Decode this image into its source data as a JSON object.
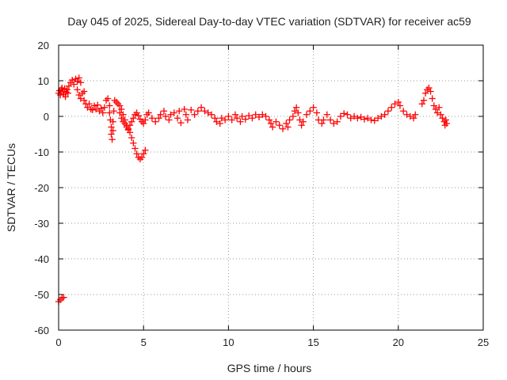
{
  "chart_data": {
    "type": "scatter",
    "title": "Day 045 of 2025, Sidereal Day-to-day VTEC variation (SDTVAR) for receiver ac59",
    "xlabel": "GPS time / hours",
    "ylabel": "SDTVAR / TECUs",
    "xlim": [
      0,
      25
    ],
    "ylim": [
      -60,
      20
    ],
    "xticks": [
      0,
      5,
      10,
      15,
      20,
      25
    ],
    "yticks": [
      -60,
      -50,
      -40,
      -30,
      -20,
      -10,
      0,
      10,
      20
    ],
    "xtick_labels": [
      "0",
      "5",
      "10",
      "15",
      "20",
      "25"
    ],
    "ytick_labels": [
      "-60",
      "-50",
      "-40",
      "-30",
      "-20",
      "-10",
      "0",
      "10",
      "20"
    ],
    "grid": true,
    "marker": "plus",
    "color": "#ff0000",
    "series": [
      {
        "name": "SDTVAR",
        "points": [
          [
            0.0,
            -52.0
          ],
          [
            0.1,
            -51.5
          ],
          [
            0.2,
            -51.0
          ],
          [
            0.3,
            -50.8
          ],
          [
            0.0,
            6.5
          ],
          [
            0.05,
            7.2
          ],
          [
            0.1,
            6.0
          ],
          [
            0.15,
            7.5
          ],
          [
            0.2,
            8.0
          ],
          [
            0.25,
            7.0
          ],
          [
            0.3,
            6.2
          ],
          [
            0.35,
            7.8
          ],
          [
            0.4,
            5.5
          ],
          [
            0.45,
            6.8
          ],
          [
            0.5,
            7.5
          ],
          [
            0.55,
            6.5
          ],
          [
            0.6,
            8.5
          ],
          [
            0.7,
            9.5
          ],
          [
            0.8,
            10.2
          ],
          [
            0.9,
            9.0
          ],
          [
            1.0,
            10.5
          ],
          [
            1.1,
            9.8
          ],
          [
            1.2,
            10.8
          ],
          [
            1.3,
            9.5
          ],
          [
            1.1,
            7.5
          ],
          [
            1.2,
            6.0
          ],
          [
            1.3,
            5.0
          ],
          [
            1.4,
            6.5
          ],
          [
            1.5,
            4.5
          ],
          [
            1.6,
            3.5
          ],
          [
            1.5,
            7.0
          ],
          [
            1.7,
            2.5
          ],
          [
            1.8,
            3.5
          ],
          [
            1.9,
            2.0
          ],
          [
            2.0,
            1.8
          ],
          [
            2.1,
            3.0
          ],
          [
            2.2,
            2.0
          ],
          [
            2.3,
            3.2
          ],
          [
            2.4,
            1.5
          ],
          [
            2.5,
            2.2
          ],
          [
            2.6,
            1.0
          ],
          [
            2.7,
            2.5
          ],
          [
            2.8,
            4.5
          ],
          [
            2.9,
            5.0
          ],
          [
            3.0,
            3.0
          ],
          [
            3.0,
            1.0
          ],
          [
            3.05,
            -1.0
          ],
          [
            3.1,
            -3.0
          ],
          [
            3.1,
            -5.0
          ],
          [
            3.15,
            -6.5
          ],
          [
            3.2,
            -4.0
          ],
          [
            3.2,
            -1.5
          ],
          [
            3.25,
            1.5
          ],
          [
            3.3,
            4.5
          ],
          [
            3.4,
            4.0
          ],
          [
            3.5,
            3.5
          ],
          [
            3.6,
            3.0
          ],
          [
            3.7,
            2.0
          ],
          [
            3.8,
            0.5
          ],
          [
            3.9,
            -1.0
          ],
          [
            4.0,
            -2.5
          ],
          [
            4.1,
            -3.5
          ],
          [
            4.2,
            -4.5
          ],
          [
            4.3,
            -6.0
          ],
          [
            4.4,
            -7.5
          ],
          [
            4.5,
            -9.0
          ],
          [
            4.6,
            -10.5
          ],
          [
            4.7,
            -11.5
          ],
          [
            4.8,
            -12.0
          ],
          [
            4.9,
            -11.5
          ],
          [
            5.0,
            -10.5
          ],
          [
            5.1,
            -9.5
          ],
          [
            3.6,
            1.0
          ],
          [
            3.7,
            -0.5
          ],
          [
            3.8,
            -1.5
          ],
          [
            3.9,
            -2.0
          ],
          [
            4.0,
            -3.0
          ],
          [
            4.1,
            -3.8
          ],
          [
            4.2,
            -2.5
          ],
          [
            4.3,
            -1.5
          ],
          [
            4.4,
            -0.5
          ],
          [
            4.5,
            0.5
          ],
          [
            4.6,
            1.0
          ],
          [
            4.7,
            0.2
          ],
          [
            4.8,
            -0.8
          ],
          [
            4.9,
            -1.5
          ],
          [
            5.0,
            -2.0
          ],
          [
            5.1,
            -1.0
          ],
          [
            5.2,
            0.5
          ],
          [
            5.3,
            1.0
          ],
          [
            5.5,
            -0.5
          ],
          [
            5.7,
            -1.5
          ],
          [
            5.9,
            -0.5
          ],
          [
            6.0,
            0.5
          ],
          [
            6.2,
            1.5
          ],
          [
            6.3,
            0.0
          ],
          [
            6.5,
            -1.0
          ],
          [
            6.6,
            0.5
          ],
          [
            6.8,
            1.0
          ],
          [
            7.0,
            -0.5
          ],
          [
            7.1,
            1.5
          ],
          [
            7.2,
            -1.8
          ],
          [
            7.4,
            2.0
          ],
          [
            7.5,
            0.5
          ],
          [
            7.6,
            -1.0
          ],
          [
            7.8,
            1.8
          ],
          [
            8.0,
            0.5
          ],
          [
            8.2,
            1.5
          ],
          [
            8.4,
            2.5
          ],
          [
            8.6,
            1.5
          ],
          [
            8.8,
            1.0
          ],
          [
            9.0,
            0.5
          ],
          [
            9.2,
            -0.5
          ],
          [
            9.3,
            -1.5
          ],
          [
            9.5,
            -2.0
          ],
          [
            9.6,
            -0.5
          ],
          [
            9.8,
            -1.0
          ],
          [
            10.0,
            0.0
          ],
          [
            10.2,
            -1.0
          ],
          [
            10.4,
            0.5
          ],
          [
            10.5,
            -0.5
          ],
          [
            10.7,
            -1.5
          ],
          [
            10.8,
            0.0
          ],
          [
            11.0,
            -0.8
          ],
          [
            11.2,
            0.2
          ],
          [
            11.4,
            -0.5
          ],
          [
            11.6,
            0.5
          ],
          [
            11.8,
            -0.2
          ],
          [
            12.0,
            0.5
          ],
          [
            12.2,
            0.0
          ],
          [
            12.4,
            -1.0
          ],
          [
            12.5,
            -2.0
          ],
          [
            12.6,
            -3.0
          ],
          [
            12.8,
            -1.5
          ],
          [
            13.0,
            -2.5
          ],
          [
            13.2,
            -3.5
          ],
          [
            13.4,
            -2.0
          ],
          [
            13.5,
            -3.0
          ],
          [
            13.6,
            -1.0
          ],
          [
            13.8,
            0.0
          ],
          [
            13.9,
            1.5
          ],
          [
            14.0,
            2.5
          ],
          [
            14.1,
            1.0
          ],
          [
            14.2,
            -1.0
          ],
          [
            14.3,
            -2.5
          ],
          [
            14.4,
            -1.5
          ],
          [
            14.6,
            0.5
          ],
          [
            14.8,
            1.5
          ],
          [
            15.0,
            2.5
          ],
          [
            15.2,
            1.0
          ],
          [
            15.3,
            -1.0
          ],
          [
            15.5,
            -2.0
          ],
          [
            15.6,
            -1.0
          ],
          [
            15.8,
            0.5
          ],
          [
            16.0,
            -1.0
          ],
          [
            16.2,
            -2.0
          ],
          [
            16.4,
            -1.5
          ],
          [
            16.6,
            0.0
          ],
          [
            16.8,
            0.8
          ],
          [
            17.0,
            0.5
          ],
          [
            17.2,
            -0.5
          ],
          [
            17.4,
            0.0
          ],
          [
            17.6,
            -0.5
          ],
          [
            17.8,
            -0.2
          ],
          [
            18.0,
            -0.8
          ],
          [
            18.2,
            -0.5
          ],
          [
            18.4,
            -1.0
          ],
          [
            18.6,
            -1.2
          ],
          [
            18.8,
            -0.5
          ],
          [
            19.0,
            0.0
          ],
          [
            19.2,
            0.5
          ],
          [
            19.4,
            1.5
          ],
          [
            19.6,
            2.5
          ],
          [
            19.8,
            3.5
          ],
          [
            20.0,
            4.0
          ],
          [
            20.1,
            3.0
          ],
          [
            20.3,
            1.5
          ],
          [
            20.5,
            0.5
          ],
          [
            20.7,
            0.0
          ],
          [
            20.9,
            -0.5
          ],
          [
            21.0,
            0.5
          ],
          [
            21.4,
            3.5
          ],
          [
            21.5,
            4.5
          ],
          [
            21.6,
            6.5
          ],
          [
            21.7,
            7.5
          ],
          [
            21.8,
            8.0
          ],
          [
            21.9,
            7.0
          ],
          [
            22.0,
            5.0
          ],
          [
            22.1,
            3.0
          ],
          [
            22.2,
            2.0
          ],
          [
            22.3,
            1.0
          ],
          [
            22.4,
            2.5
          ],
          [
            22.5,
            0.5
          ],
          [
            22.6,
            -0.5
          ],
          [
            22.7,
            -1.5
          ],
          [
            22.75,
            -2.5
          ],
          [
            22.8,
            -1.0
          ],
          [
            22.85,
            -2.0
          ]
        ]
      }
    ]
  }
}
